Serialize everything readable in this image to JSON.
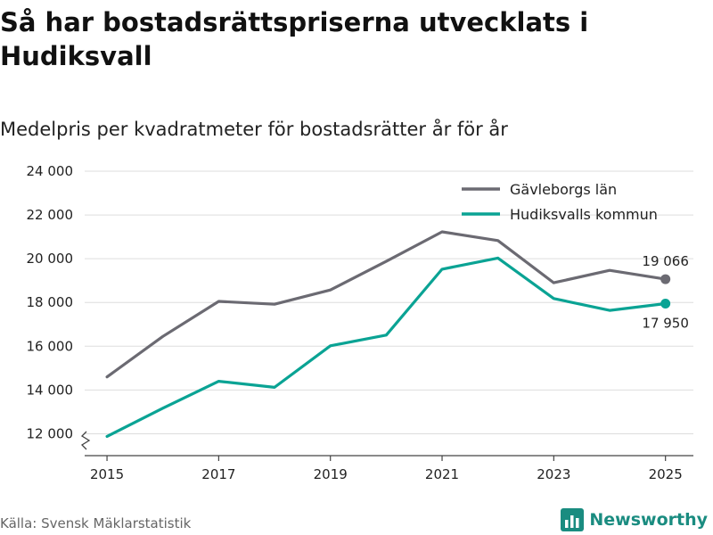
{
  "chart_data": {
    "type": "line",
    "title": "Så har bostadsrättspriserna utvecklats i Hudiksvall",
    "subtitle": "Medelpris per kvadratmeter för bostadsrätter år för år",
    "xlabel": "",
    "ylabel": "",
    "x": [
      2015,
      2016,
      2017,
      2018,
      2019,
      2020,
      2021,
      2022,
      2023,
      2024,
      2025
    ],
    "x_ticks": [
      "2015",
      "2017",
      "2019",
      "2021",
      "2023",
      "2025"
    ],
    "y_ticks": [
      "12 000",
      "14 000",
      "16 000",
      "18 000",
      "20 000",
      "22 000",
      "24 000"
    ],
    "ylim": [
      11000,
      24000
    ],
    "xlim": [
      2014.6,
      2025.5
    ],
    "axis_break": true,
    "grid": true,
    "legend_position": "top-right",
    "series": [
      {
        "name": "Gävleborgs län",
        "color": "#6b6a72",
        "values": [
          14600,
          16450,
          18050,
          17920,
          18570,
          19880,
          21230,
          20830,
          18900,
          19470,
          19066
        ],
        "end_label": "19 066"
      },
      {
        "name": "Hudiksvalls kommun",
        "color": "#0aa394",
        "values": [
          11880,
          13170,
          14400,
          14120,
          16020,
          16510,
          19520,
          20030,
          18180,
          17640,
          17950
        ],
        "end_label": "17 950"
      }
    ]
  },
  "footer": {
    "source": "Källa: Svensk Mäklarstatistik",
    "brand": "Newsworthy",
    "brand_color": "#1a8c80"
  }
}
